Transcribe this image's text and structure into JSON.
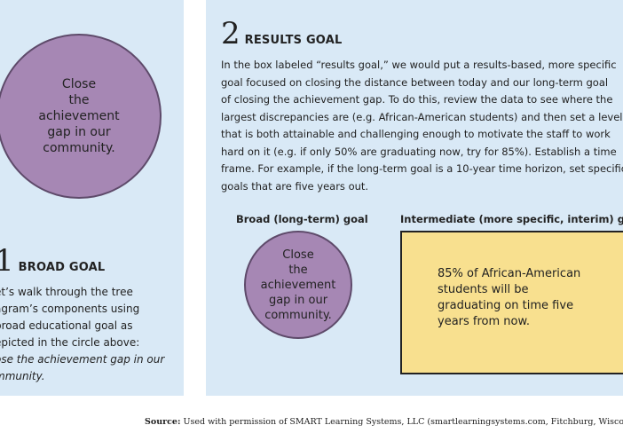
{
  "left_panel": {
    "circle_text": "Close\nthe\nachievement\ngap in our\ncommunity.",
    "number": "1",
    "title": "BROAD GOAL",
    "body_lines": [
      "et’s walk through the tree",
      "agram’s components using",
      " broad educational goal as",
      "epicted in the circle above:"
    ],
    "italic_lines": [
      "ose the achievement gap in our",
      "mmunity."
    ]
  },
  "right_panel": {
    "number": "2",
    "title": "RESULTS GOAL",
    "body_lines": [
      "In the box labeled “results goal,” we would put a results-based, more specific",
      "goal focused on closing the distance between today and our long-term goal",
      "of closing the achievement gap. To do this, review the data to see where the",
      "largest discrepancies are (e.g. African-American students) and then set a level",
      "that is both attainable and challenging enough to motivate the staff to work",
      "hard on it (e.g. if only 50% are graduating now, try for 85%). Establish a time",
      "frame. For example, if the long-term goal is a 10-year time horizon, set specific",
      "goals that are five years out."
    ],
    "broad_label": "Broad (long-term) goal",
    "intermediate_label": "Intermediate (more specific, interim) goal",
    "small_circle_text": "Close\nthe\nachievement\ngap in our\ncommunity.",
    "box_text": "85% of African-American\nstudents will be\ngraduating on time five\nyears from now."
  },
  "source": {
    "label": "Source:",
    "text": " Used with permission of SMART Learning Systems, LLC (smartlearningsystems.com, Fitchburg, Wisco"
  },
  "colors": {
    "panel_bg": "#d9e9f6",
    "circle_fill": "#a687b4",
    "box_fill": "#f8e08f"
  }
}
